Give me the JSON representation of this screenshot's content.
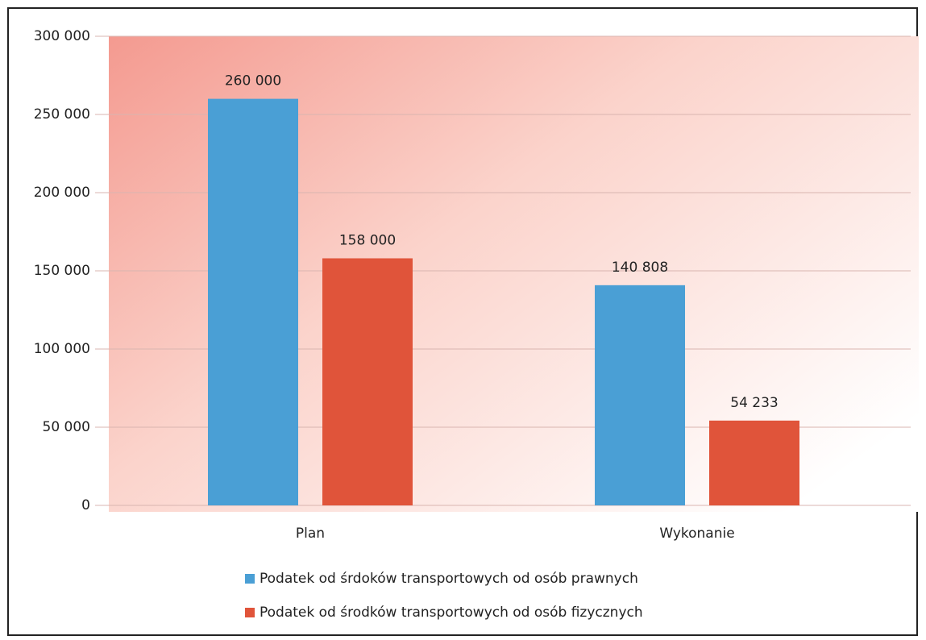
{
  "chart_data": {
    "type": "bar",
    "categories": [
      "Plan",
      "Wykonanie"
    ],
    "series": [
      {
        "name": "Podatek od śrdoków transportowych od osób prawnych",
        "color": "#4a9fd5",
        "values": [
          260000,
          140808
        ],
        "value_labels": [
          "260 000",
          "140 808"
        ]
      },
      {
        "name": "Podatek od środków transportowych od osób fizycznych",
        "color": "#e0543a",
        "values": [
          158000,
          54233
        ],
        "value_labels": [
          "158 000",
          "54 233"
        ]
      }
    ],
    "ylim": [
      0,
      300000
    ],
    "yticks": [
      0,
      {
        "value": 50000,
        "label": "50 000"
      },
      {
        "value": 100000,
        "label": "100 000"
      },
      {
        "value": 150000,
        "label": "150 000"
      },
      {
        "value": 200000,
        "label": "200 000"
      },
      {
        "value": 250000,
        "label": "250 000"
      },
      {
        "value": 300000,
        "label": "300 000"
      }
    ],
    "grid": true
  }
}
